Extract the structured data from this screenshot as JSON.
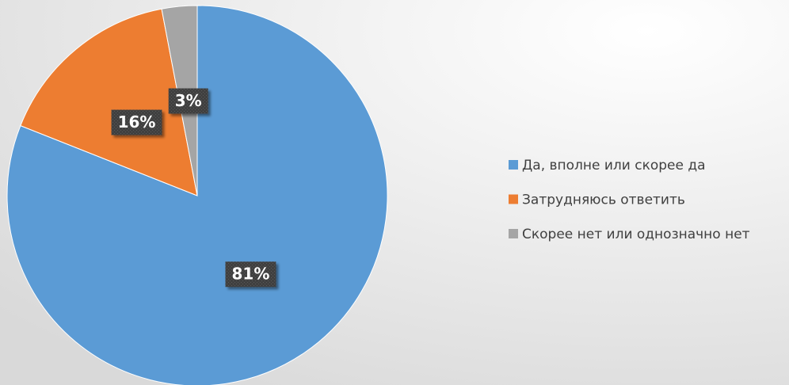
{
  "chart_data": {
    "type": "pie",
    "categories": [
      "Да, вполне или скорее да",
      "Затрудняюсь ответить",
      "Скорее нет или однозначно нет"
    ],
    "values": [
      81,
      16,
      3
    ],
    "value_labels": [
      "81%",
      "16%",
      "3%"
    ],
    "colors": [
      "#5b9bd5",
      "#ed7d31",
      "#a5a5a5"
    ],
    "legend": "right"
  }
}
